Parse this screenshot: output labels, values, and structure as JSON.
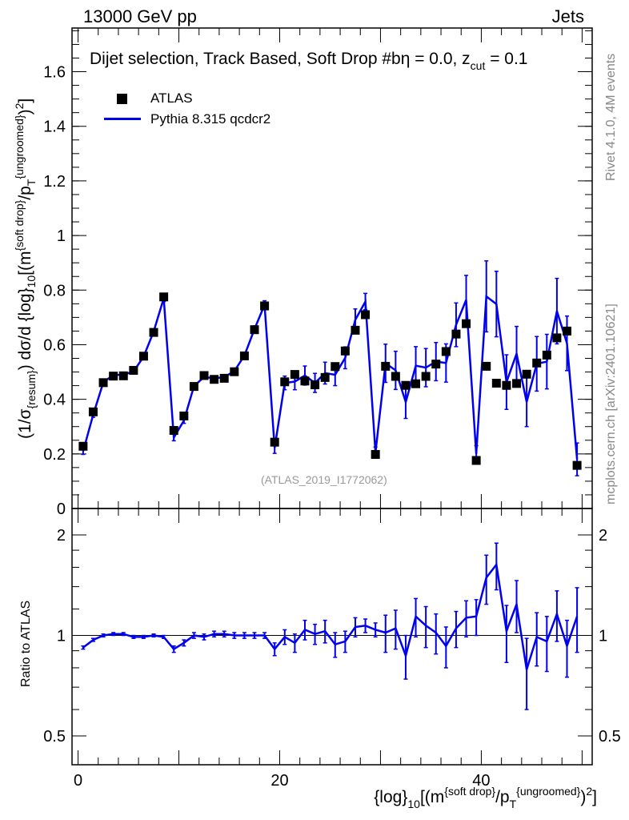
{
  "header": {
    "left": "13000 GeV pp",
    "right": "Jets"
  },
  "side": {
    "top": "Rivet 4.1.0,  4M events",
    "bottom": "mcplots.cern.ch [arXiv:2401.10621]"
  },
  "colors": {
    "data": "#000000",
    "mc": "#0000ee",
    "axis": "#000000",
    "watermark": "#999999",
    "side_text": "#888888"
  },
  "chart_data": [
    {
      "panel": "main",
      "type": "scatter",
      "title": "Dijet selection, Track Based, Soft Drop #b",
      "title_suffix": "η = 0.0, z",
      "title_sub": "cut",
      "title_end": " = 0.1",
      "ylabel": {
        "a": "(1/σ",
        "b": "{resum}",
        "c": ") dσ/d {log}",
        "d": "10",
        "e": "[(m",
        "f": "{soft drop}",
        "g": "/p",
        "h": "T",
        "i": "{ungroomed}",
        "j": ")",
        "k": "2",
        "l": "]"
      },
      "xlim": [
        -0.6,
        51.0
      ],
      "ylim": [
        0.0,
        1.76
      ],
      "yticks": [
        0,
        0.2,
        0.4,
        0.6,
        0.8,
        1,
        1.2,
        1.4,
        1.6
      ],
      "ytick_labels": [
        "0",
        "0.2",
        "0.4",
        "0.6",
        "0.8",
        "1",
        "1.2",
        "1.4",
        "1.6"
      ],
      "watermark": "(ATLAS_2019_I1772062)",
      "legend": [
        {
          "label": "ATLAS",
          "kind": "marker"
        },
        {
          "label": "Pythia 8.315 qcdcr2",
          "kind": "line"
        }
      ],
      "series": [
        {
          "name": "ATLAS",
          "x": [
            0.5,
            1.5,
            2.5,
            3.5,
            4.5,
            5.5,
            6.5,
            7.5,
            8.5,
            9.5,
            10.5,
            11.5,
            12.5,
            13.5,
            14.5,
            15.5,
            16.5,
            17.5,
            18.5,
            19.5,
            20.5,
            21.5,
            22.5,
            23.5,
            24.5,
            25.5,
            26.5,
            27.5,
            28.5,
            29.5,
            30.5,
            31.5,
            32.5,
            33.5,
            34.5,
            35.5,
            36.5,
            37.5,
            38.5,
            39.5,
            40.5,
            41.5,
            42.5,
            43.5,
            44.5,
            45.5,
            46.5,
            47.5,
            48.5,
            49.5
          ],
          "values": [
            0.228,
            0.354,
            0.461,
            0.485,
            0.486,
            0.506,
            0.558,
            0.645,
            0.775,
            0.286,
            0.339,
            0.447,
            0.487,
            0.473,
            0.477,
            0.501,
            0.559,
            0.655,
            0.742,
            0.243,
            0.464,
            0.491,
            0.467,
            0.453,
            0.48,
            0.52,
            0.577,
            0.653,
            0.71,
            0.198,
            0.521,
            0.484,
            0.451,
            0.457,
            0.484,
            0.529,
            0.575,
            0.639,
            0.677,
            0.176,
            0.521,
            0.459,
            0.451,
            0.458,
            0.492,
            0.533,
            0.562,
            0.625,
            0.65,
            0.158
          ]
        },
        {
          "name": "Pythia 8.315 qcdcr2",
          "x": [
            0.5,
            1.5,
            2.5,
            3.5,
            4.5,
            5.5,
            6.5,
            7.5,
            8.5,
            9.5,
            10.5,
            11.5,
            12.5,
            13.5,
            14.5,
            15.5,
            16.5,
            17.5,
            18.5,
            19.5,
            20.5,
            21.5,
            22.5,
            23.5,
            24.5,
            25.5,
            26.5,
            27.5,
            28.5,
            29.5,
            30.5,
            31.5,
            32.5,
            33.5,
            34.5,
            35.5,
            36.5,
            37.5,
            38.5,
            39.5,
            40.5,
            41.5,
            42.5,
            43.5,
            44.5,
            45.5,
            46.5,
            47.5,
            48.5,
            49.5
          ],
          "values": [
            0.21,
            0.344,
            0.462,
            0.489,
            0.49,
            0.502,
            0.556,
            0.648,
            0.77,
            0.26,
            0.322,
            0.448,
            0.482,
            0.477,
            0.481,
            0.503,
            0.56,
            0.657,
            0.746,
            0.222,
            0.46,
            0.465,
            0.487,
            0.46,
            0.496,
            0.49,
            0.552,
            0.691,
            0.758,
            0.205,
            0.532,
            0.506,
            0.39,
            0.523,
            0.516,
            0.538,
            0.533,
            0.673,
            0.764,
            0.2,
            0.777,
            0.749,
            0.463,
            0.567,
            0.39,
            0.53,
            0.538,
            0.723,
            0.605,
            0.18
          ],
          "yerr": [
            0.012,
            0.01,
            0.008,
            0.007,
            0.007,
            0.007,
            0.008,
            0.01,
            0.012,
            0.012,
            0.01,
            0.008,
            0.008,
            0.008,
            0.008,
            0.009,
            0.01,
            0.012,
            0.015,
            0.02,
            0.025,
            0.03,
            0.035,
            0.035,
            0.04,
            0.04,
            0.04,
            0.04,
            0.03,
            0.02,
            0.07,
            0.07,
            0.06,
            0.07,
            0.07,
            0.07,
            0.07,
            0.08,
            0.09,
            0.03,
            0.13,
            0.12,
            0.1,
            0.1,
            0.09,
            0.1,
            0.1,
            0.12,
            0.1,
            0.06
          ]
        }
      ]
    },
    {
      "panel": "ratio",
      "type": "line",
      "ylabel": "Ratio to ATLAS",
      "xlabel": {
        "a": "{log}",
        "b": "10",
        "c": "[(m",
        "d": "{soft drop}",
        "e": "/p",
        "f": "T",
        "g": "{ungroomed}",
        "h": ")",
        "i": "2",
        "j": "]"
      },
      "xlim": [
        -0.6,
        51.0
      ],
      "ylim": [
        0.41,
        2.4
      ],
      "ylog": true,
      "xticks": [
        0,
        20,
        40
      ],
      "xtick_labels": [
        "0",
        "20",
        "40"
      ],
      "yticks": [
        0.5,
        1,
        2
      ],
      "ytick_labels": [
        "0.5",
        "1",
        "2"
      ],
      "reference": 1.0,
      "series": [
        {
          "name": "Pythia 8.315 qcdcr2 / ATLAS",
          "x": [
            0.5,
            1.5,
            2.5,
            3.5,
            4.5,
            5.5,
            6.5,
            7.5,
            8.5,
            9.5,
            10.5,
            11.5,
            12.5,
            13.5,
            14.5,
            15.5,
            16.5,
            17.5,
            18.5,
            19.5,
            20.5,
            21.5,
            22.5,
            23.5,
            24.5,
            25.5,
            26.5,
            27.5,
            28.5,
            29.5,
            30.5,
            31.5,
            32.5,
            33.5,
            34.5,
            35.5,
            36.5,
            37.5,
            38.5,
            39.5,
            40.5,
            41.5,
            42.5,
            43.5,
            44.5,
            45.5,
            46.5,
            47.5,
            48.5,
            49.5
          ],
          "values": [
            0.92,
            0.97,
            1.0,
            1.01,
            1.01,
            0.99,
            0.99,
            1.0,
            0.99,
            0.91,
            0.95,
            1.0,
            0.99,
            1.01,
            1.01,
            1.0,
            1.0,
            1.0,
            1.0,
            0.91,
            0.99,
            0.95,
            1.04,
            1.01,
            1.03,
            0.94,
            0.96,
            1.06,
            1.07,
            1.04,
            1.02,
            1.05,
            0.87,
            1.14,
            1.07,
            1.02,
            0.93,
            1.05,
            1.13,
            1.14,
            1.49,
            1.63,
            1.03,
            1.24,
            0.79,
            0.99,
            0.96,
            1.16,
            0.93,
            1.14
          ],
          "yerr": [
            0.01,
            0.01,
            0.01,
            0.01,
            0.01,
            0.01,
            0.01,
            0.01,
            0.01,
            0.02,
            0.02,
            0.02,
            0.02,
            0.02,
            0.02,
            0.02,
            0.02,
            0.02,
            0.02,
            0.04,
            0.05,
            0.06,
            0.07,
            0.07,
            0.08,
            0.08,
            0.07,
            0.07,
            0.05,
            0.05,
            0.13,
            0.14,
            0.13,
            0.15,
            0.15,
            0.14,
            0.13,
            0.13,
            0.14,
            0.14,
            0.25,
            0.26,
            0.2,
            0.22,
            0.19,
            0.18,
            0.18,
            0.2,
            0.18,
            0.25
          ]
        }
      ]
    }
  ]
}
